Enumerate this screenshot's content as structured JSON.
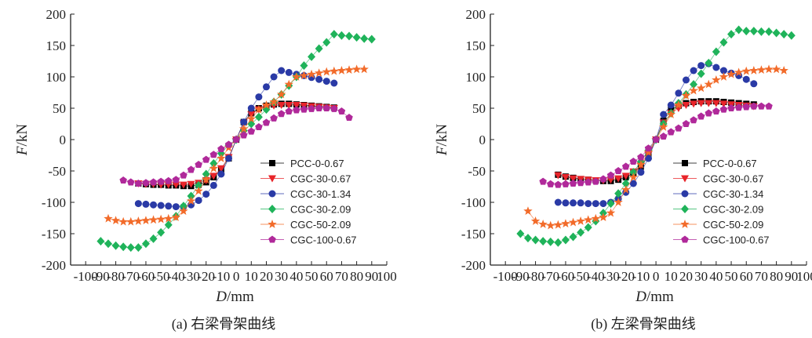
{
  "chart_data": [
    {
      "type": "scatter",
      "caption": "(a) 右梁骨架曲线",
      "xlabel": "D/mm",
      "ylabel": "F/kN",
      "xlim": [
        -110,
        100
      ],
      "ylim": [
        -200,
        200
      ],
      "xticks": [
        -100,
        -90,
        -80,
        -70,
        -60,
        -50,
        -40,
        -30,
        -20,
        -10,
        0,
        10,
        20,
        30,
        40,
        50,
        60,
        70,
        80,
        90,
        100
      ],
      "yticks": [
        -200,
        -150,
        -100,
        -50,
        0,
        50,
        100,
        150,
        200
      ],
      "legend_position": "lower-right",
      "series": [
        {
          "name": "PCC-0-0.67",
          "color": "#000000",
          "marker": "square",
          "x": [
            -65,
            -60,
            -55,
            -50,
            -45,
            -40,
            -35,
            -30,
            -25,
            -20,
            -15,
            -10,
            -5,
            0,
            5,
            10,
            15,
            20,
            25,
            30,
            35,
            40,
            45,
            50,
            55,
            60,
            65
          ],
          "y": [
            -70,
            -71,
            -72,
            -72,
            -73,
            -73,
            -74,
            -74,
            -72,
            -68,
            -60,
            -48,
            -30,
            0,
            28,
            42,
            50,
            54,
            56,
            57,
            57,
            56,
            55,
            54,
            53,
            52,
            51
          ]
        },
        {
          "name": "CGC-30-0.67",
          "color": "#e8242a",
          "marker": "triangle-down",
          "x": [
            -65,
            -60,
            -55,
            -50,
            -45,
            -40,
            -35,
            -30,
            -25,
            -20,
            -15,
            -10,
            -5,
            0,
            5,
            10,
            15,
            20,
            25,
            30,
            35,
            40,
            45,
            50,
            55,
            60,
            65
          ],
          "y": [
            -70,
            -71,
            -71,
            -72,
            -72,
            -72,
            -72,
            -71,
            -69,
            -65,
            -58,
            -46,
            -28,
            0,
            26,
            40,
            48,
            52,
            54,
            55,
            55,
            55,
            54,
            53,
            52,
            51,
            50
          ]
        },
        {
          "name": "CGC-30-1.34",
          "color": "#2a3aa6",
          "marker": "circle",
          "x": [
            -65,
            -60,
            -55,
            -50,
            -45,
            -40,
            -35,
            -30,
            -25,
            -20,
            -15,
            -10,
            -5,
            0,
            5,
            10,
            15,
            20,
            25,
            30,
            35,
            40,
            45,
            50,
            55,
            60,
            65
          ],
          "y": [
            -102,
            -103,
            -104,
            -105,
            -106,
            -107,
            -107,
            -104,
            -97,
            -87,
            -73,
            -55,
            -30,
            0,
            28,
            50,
            68,
            84,
            100,
            110,
            107,
            104,
            102,
            99,
            96,
            93,
            90
          ]
        },
        {
          "name": "CGC-30-2.09",
          "color": "#1fb35a",
          "marker": "diamond",
          "x": [
            -90,
            -85,
            -80,
            -75,
            -70,
            -65,
            -60,
            -55,
            -50,
            -45,
            -40,
            -35,
            -30,
            -25,
            -20,
            -15,
            -10,
            -5,
            0,
            5,
            10,
            15,
            20,
            25,
            30,
            35,
            40,
            45,
            50,
            55,
            60,
            65,
            70,
            75,
            80,
            85,
            90
          ],
          "y": [
            -162,
            -166,
            -169,
            -171,
            -172,
            -172,
            -166,
            -158,
            -148,
            -136,
            -122,
            -106,
            -90,
            -73,
            -55,
            -38,
            -22,
            -9,
            0,
            14,
            25,
            36,
            48,
            60,
            72,
            86,
            100,
            118,
            132,
            145,
            155,
            168,
            166,
            165,
            163,
            161,
            160
          ]
        },
        {
          "name": "CGC-50-2.09",
          "color": "#f26b2a",
          "marker": "star",
          "x": [
            -85,
            -80,
            -75,
            -70,
            -65,
            -60,
            -55,
            -50,
            -45,
            -40,
            -35,
            -30,
            -25,
            -20,
            -15,
            -10,
            -5,
            0,
            5,
            10,
            15,
            20,
            25,
            30,
            35,
            40,
            45,
            50,
            55,
            60,
            65,
            70,
            75,
            80,
            85
          ],
          "y": [
            -126,
            -129,
            -131,
            -131,
            -130,
            -129,
            -128,
            -127,
            -126,
            -124,
            -114,
            -98,
            -82,
            -64,
            -46,
            -30,
            -13,
            0,
            17,
            33,
            48,
            55,
            60,
            72,
            88,
            100,
            102,
            104,
            106,
            108,
            109,
            110,
            111,
            112,
            112
          ]
        },
        {
          "name": "CGC-100-0.67",
          "color": "#b0299a",
          "marker": "pentagon",
          "x": [
            -75,
            -70,
            -65,
            -60,
            -55,
            -50,
            -45,
            -40,
            -35,
            -30,
            -25,
            -20,
            -15,
            -10,
            -5,
            0,
            5,
            10,
            15,
            20,
            25,
            30,
            35,
            40,
            45,
            50,
            55,
            60,
            65,
            70,
            75
          ],
          "y": [
            -65,
            -68,
            -70,
            -69,
            -68,
            -67,
            -66,
            -64,
            -57,
            -48,
            -40,
            -32,
            -24,
            -15,
            -8,
            0,
            7,
            13,
            20,
            27,
            34,
            41,
            45,
            47,
            48,
            49,
            50,
            50,
            49,
            45,
            35
          ]
        }
      ]
    },
    {
      "type": "scatter",
      "caption": "(b) 左梁骨架曲线",
      "xlabel": "D/mm",
      "ylabel": "F/kN",
      "xlim": [
        -110,
        100
      ],
      "ylim": [
        -200,
        200
      ],
      "xticks": [
        -100,
        -90,
        -80,
        -70,
        -60,
        -50,
        -40,
        -30,
        -20,
        -10,
        0,
        10,
        20,
        30,
        40,
        50,
        60,
        70,
        80,
        90,
        100
      ],
      "yticks": [
        -200,
        -150,
        -100,
        -50,
        0,
        50,
        100,
        150,
        200
      ],
      "legend_position": "lower-right",
      "series": [
        {
          "name": "PCC-0-0.67",
          "color": "#000000",
          "marker": "square",
          "x": [
            -65,
            -60,
            -55,
            -50,
            -45,
            -40,
            -35,
            -30,
            -25,
            -20,
            -15,
            -10,
            -5,
            0,
            5,
            10,
            15,
            20,
            25,
            30,
            35,
            40,
            45,
            50,
            55,
            60,
            65
          ],
          "y": [
            -56,
            -59,
            -61,
            -63,
            -64,
            -65,
            -66,
            -66,
            -64,
            -60,
            -53,
            -43,
            -26,
            0,
            30,
            48,
            54,
            58,
            60,
            61,
            61,
            61,
            60,
            59,
            58,
            57,
            56
          ]
        },
        {
          "name": "CGC-30-0.67",
          "color": "#e8242a",
          "marker": "triangle-down",
          "x": [
            -65,
            -60,
            -55,
            -50,
            -45,
            -40,
            -35,
            -30,
            -25,
            -20,
            -15,
            -10,
            -5,
            0,
            5,
            10,
            15,
            20,
            25,
            30,
            35,
            40,
            45,
            50,
            55,
            60,
            65
          ],
          "y": [
            -57,
            -60,
            -62,
            -63,
            -64,
            -65,
            -65,
            -64,
            -62,
            -58,
            -51,
            -41,
            -24,
            0,
            27,
            42,
            50,
            55,
            57,
            58,
            58,
            58,
            57,
            56,
            55,
            54,
            53
          ]
        },
        {
          "name": "CGC-30-1.34",
          "color": "#2a3aa6",
          "marker": "circle",
          "x": [
            -65,
            -60,
            -55,
            -50,
            -45,
            -40,
            -35,
            -30,
            -25,
            -20,
            -15,
            -10,
            -5,
            0,
            5,
            10,
            15,
            20,
            25,
            30,
            35,
            40,
            45,
            50,
            55,
            60,
            65
          ],
          "y": [
            -100,
            -101,
            -101,
            -101,
            -102,
            -102,
            -102,
            -100,
            -94,
            -84,
            -70,
            -52,
            -30,
            0,
            40,
            55,
            74,
            95,
            110,
            118,
            121,
            115,
            110,
            106,
            102,
            96,
            89
          ]
        },
        {
          "name": "CGC-30-2.09",
          "color": "#1fb35a",
          "marker": "diamond",
          "x": [
            -90,
            -85,
            -80,
            -75,
            -70,
            -65,
            -60,
            -55,
            -50,
            -45,
            -40,
            -35,
            -30,
            -25,
            -20,
            -15,
            -10,
            -5,
            0,
            5,
            10,
            15,
            20,
            25,
            30,
            35,
            40,
            45,
            50,
            55,
            60,
            65,
            70,
            75,
            80,
            85,
            90
          ],
          "y": [
            -150,
            -157,
            -160,
            -162,
            -163,
            -164,
            -160,
            -155,
            -148,
            -140,
            -130,
            -117,
            -102,
            -86,
            -70,
            -52,
            -35,
            -17,
            0,
            25,
            42,
            58,
            72,
            88,
            105,
            122,
            140,
            155,
            168,
            175,
            173,
            173,
            172,
            172,
            170,
            168,
            166
          ]
        },
        {
          "name": "CGC-50-2.09",
          "color": "#f26b2a",
          "marker": "star",
          "x": [
            -85,
            -80,
            -75,
            -70,
            -65,
            -60,
            -55,
            -50,
            -45,
            -40,
            -35,
            -30,
            -25,
            -20,
            -15,
            -10,
            -5,
            0,
            5,
            10,
            15,
            20,
            25,
            30,
            35,
            40,
            45,
            50,
            55,
            60,
            65,
            70,
            75,
            80,
            85
          ],
          "y": [
            -114,
            -130,
            -135,
            -137,
            -136,
            -134,
            -132,
            -130,
            -128,
            -126,
            -124,
            -117,
            -100,
            -80,
            -60,
            -40,
            -20,
            0,
            20,
            40,
            55,
            70,
            78,
            82,
            88,
            95,
            100,
            104,
            107,
            109,
            110,
            111,
            112,
            112,
            110
          ]
        },
        {
          "name": "CGC-100-0.67",
          "color": "#b0299a",
          "marker": "pentagon",
          "x": [
            -75,
            -70,
            -65,
            -60,
            -55,
            -50,
            -45,
            -40,
            -35,
            -30,
            -25,
            -20,
            -15,
            -10,
            -5,
            0,
            5,
            10,
            15,
            20,
            25,
            30,
            35,
            40,
            45,
            50,
            55,
            60,
            65,
            70,
            75
          ],
          "y": [
            -67,
            -71,
            -72,
            -71,
            -70,
            -69,
            -68,
            -67,
            -63,
            -57,
            -50,
            -43,
            -35,
            -28,
            -14,
            0,
            5,
            12,
            18,
            25,
            31,
            37,
            42,
            45,
            48,
            50,
            51,
            52,
            53,
            53,
            53
          ]
        }
      ]
    }
  ]
}
